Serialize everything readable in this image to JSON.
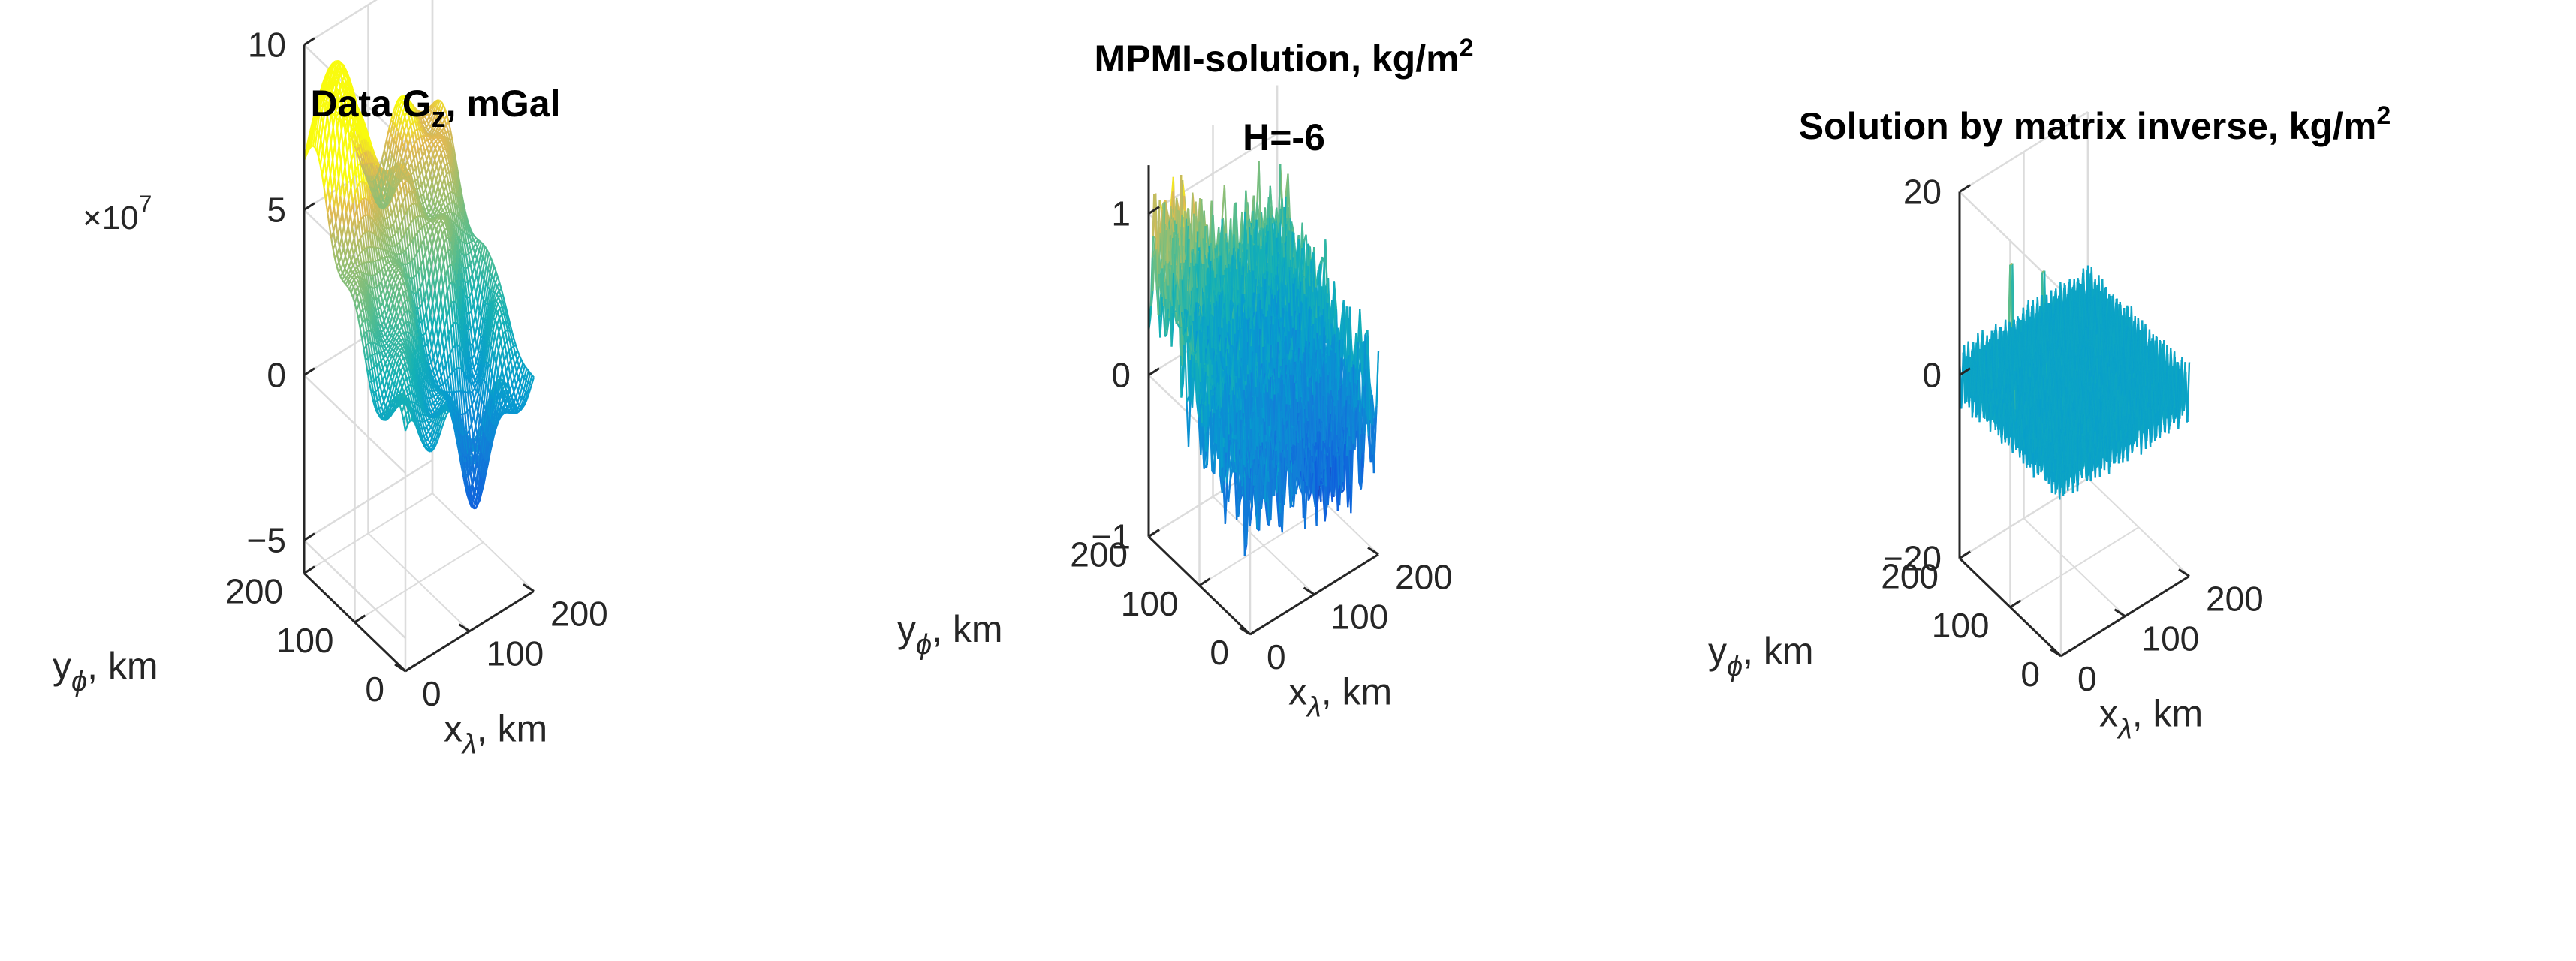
{
  "figure": {
    "background": "#ffffff",
    "axis_color": "#262626",
    "grid_color": "#dcdcdc"
  },
  "chart_data": [
    {
      "type": "mesh3d",
      "title": {
        "main": "Data G",
        "sub": "z",
        "rest": ", mGal"
      },
      "exponent": {
        "prefix": "×10",
        "power": "7"
      },
      "xlabel": {
        "main": "x",
        "sub": "λ",
        "rest": ", km"
      },
      "ylabel": {
        "main": "y",
        "sub": "ϕ",
        "rest": ", km"
      },
      "xlim": [
        0,
        200
      ],
      "ylim": [
        0,
        200
      ],
      "xticks": [
        0,
        100,
        200
      ],
      "xtick_labels": [
        "0",
        "100",
        "200"
      ],
      "yticks": [
        0,
        100,
        200
      ],
      "ytick_labels": [
        "0",
        "100",
        "200"
      ],
      "zlim": [
        -6,
        10
      ],
      "zticks": [
        -5,
        0,
        5,
        10
      ],
      "ztick_labels": [
        "−5",
        "0",
        "5",
        "10"
      ],
      "colormap": "parula",
      "surface": {
        "kind": "smooth",
        "base": 0.5,
        "tilt_x": 0.0,
        "tilt_y": 0.025,
        "bumps": [
          {
            "x": 30,
            "y": 170,
            "amp": 5.5,
            "sigma": 22
          },
          {
            "x": 70,
            "y": 140,
            "amp": 2.0,
            "sigma": 18
          },
          {
            "x": 140,
            "y": 40,
            "amp": -4.0,
            "sigma": 22
          },
          {
            "x": 170,
            "y": 80,
            "amp": -2.5,
            "sigma": 15
          },
          {
            "x": 100,
            "y": 60,
            "amp": -2.0,
            "sigma": 20
          },
          {
            "x": 160,
            "y": 160,
            "amp": 1.5,
            "sigma": 25
          }
        ],
        "ripple": 0.9,
        "zmin": -5.5,
        "zmax": 6.5
      }
    },
    {
      "type": "mesh3d",
      "title": {
        "line1": "MPMI-solution, kg/m",
        "line1_sup": "2",
        "line2": "H=-6"
      },
      "xlabel": {
        "main": "x",
        "sub": "λ",
        "rest": ", km"
      },
      "ylabel": {
        "main": "y",
        "sub": "ϕ",
        "rest": ", km"
      },
      "xlim": [
        0,
        200
      ],
      "ylim": [
        0,
        200
      ],
      "xticks": [
        0,
        100,
        200
      ],
      "xtick_labels": [
        "0",
        "100",
        "200"
      ],
      "yticks": [
        0,
        100,
        200
      ],
      "ytick_labels": [
        "0",
        "100",
        "200"
      ],
      "zlim": [
        -1,
        1.3
      ],
      "zticks": [
        -1,
        0,
        1
      ],
      "ztick_labels": [
        "−1",
        "0",
        "1"
      ],
      "colormap": "parula",
      "surface": {
        "kind": "oscillating",
        "base": -0.05,
        "tilt_x": 0.0,
        "tilt_y": 0.002,
        "bumps": [
          {
            "x": 20,
            "y": 170,
            "amp": 0.5,
            "sigma": 30
          },
          {
            "x": 150,
            "y": 50,
            "amp": -0.3,
            "sigma": 30
          }
        ],
        "ripple": 0.45,
        "zmin": -0.9,
        "zmax": 1.2
      }
    },
    {
      "type": "mesh3d",
      "title": {
        "main": "Solution by matrix inverse, kg/m",
        "sup": "2"
      },
      "xlabel": {
        "main": "x",
        "sub": "λ",
        "rest": ", km"
      },
      "ylabel": {
        "main": "y",
        "sub": "ϕ",
        "rest": ", km"
      },
      "xlim": [
        0,
        200
      ],
      "ylim": [
        0,
        200
      ],
      "xticks": [
        0,
        100,
        200
      ],
      "xtick_labels": [
        "0",
        "100",
        "200"
      ],
      "yticks": [
        0,
        100,
        200
      ],
      "ytick_labels": [
        "0",
        "100",
        "200"
      ],
      "zlim": [
        -20,
        20
      ],
      "zticks": [
        -20,
        0,
        20
      ],
      "ztick_labels": [
        "−20",
        "0",
        "20"
      ],
      "colormap": "parula",
      "surface": {
        "kind": "noisy",
        "base": 0,
        "tilt_x": 0,
        "tilt_y": 0,
        "bumps": [],
        "ripple": 2.5,
        "spikes": [
          {
            "x": 40,
            "y": 150,
            "z": 13
          },
          {
            "x": 90,
            "y": 150,
            "z": 10
          },
          {
            "x": 80,
            "y": 100,
            "z": 7
          }
        ],
        "zmin": -18,
        "zmax": 18
      }
    }
  ]
}
